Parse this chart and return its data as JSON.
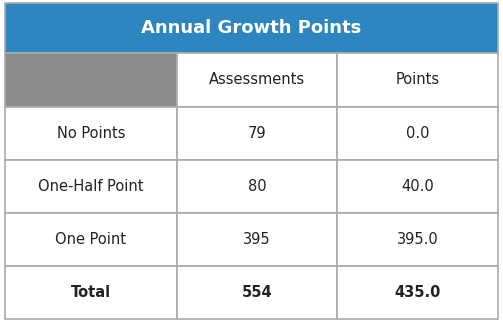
{
  "title": "Annual Growth Points",
  "title_bg_color": "#2E86C1",
  "title_text_color": "#FFFFFF",
  "header_bg_color": "#8C8C8C",
  "col_headers": [
    "Assessments",
    "Points"
  ],
  "row_labels": [
    "No Points",
    "One-Half Point",
    "One Point",
    "Total"
  ],
  "assessments": [
    "79",
    "80",
    "395",
    "554"
  ],
  "points": [
    "0.0",
    "40.0",
    "395.0",
    "435.0"
  ],
  "border_color": "#AAAAAA",
  "text_color": "#222222",
  "figsize": [
    5.03,
    3.22
  ],
  "dpi": 100,
  "title_fontsize": 13,
  "data_fontsize": 10.5
}
